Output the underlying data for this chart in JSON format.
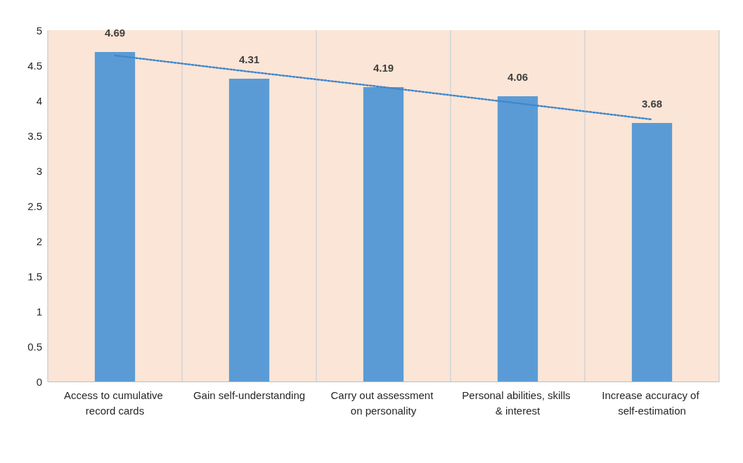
{
  "chart_data": {
    "type": "bar",
    "categories": [
      "Access to cumulative record cards",
      "Gain self-understanding",
      "Carry out assessment on personality",
      "Personal abilities, skills & interest",
      "Increase accuracy of self-estimation"
    ],
    "series": [
      {
        "color": "#5b9bd5",
        "values": [
          4.69,
          4.31,
          4.19,
          4.06,
          3.68
        ],
        "value_labels": [
          "4.69",
          "4.31",
          "4.19",
          "4.06",
          "3.68"
        ]
      },
      {
        "type": "line",
        "color": "#3f86cc",
        "x": [
          "Access to cumulative record cards",
          "Gain self-understanding",
          "Carry out assessment on personality",
          "Personal abilities, skills & interest",
          "Increase accuracy of self-estimation"
        ],
        "values": [
          4.64,
          4.41,
          4.19,
          3.96,
          3.73
        ],
        "marker": "none",
        "line_style": "dotted"
      }
    ],
    "ylim": [
      0,
      5
    ],
    "yticks": [
      0,
      0.5,
      1,
      1.5,
      2,
      2.5,
      3,
      3.5,
      4,
      4.5,
      5
    ],
    "grid": "x"
  }
}
